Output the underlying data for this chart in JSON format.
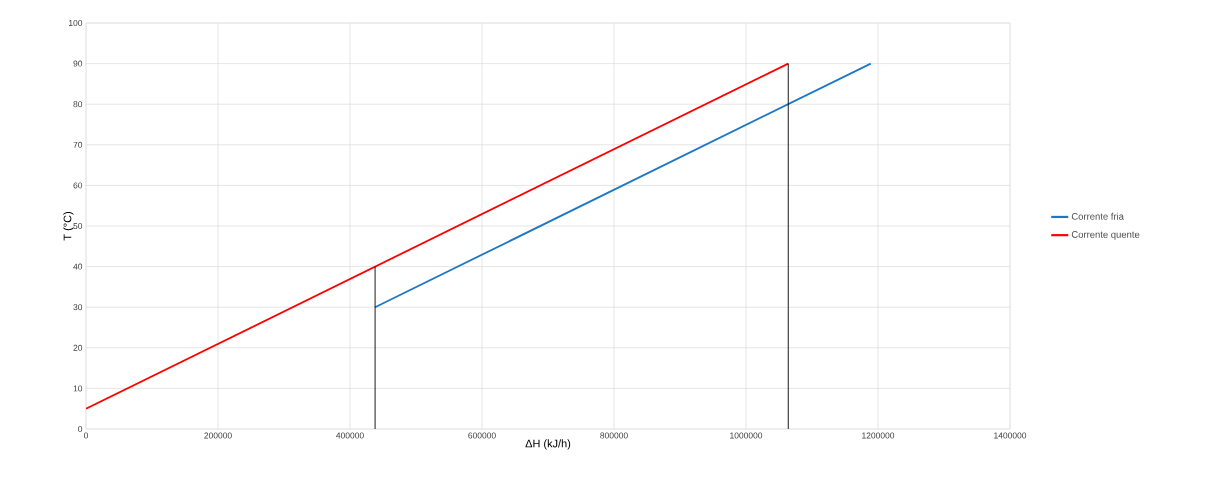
{
  "chart_data": {
    "type": "line",
    "xlabel": "ΔH (kJ/h)",
    "ylabel": "T (°C)",
    "xlim": [
      0,
      1400000
    ],
    "ylim": [
      0,
      100
    ],
    "xticks": [
      0,
      200000,
      400000,
      600000,
      800000,
      1000000,
      1200000,
      1400000
    ],
    "yticks": [
      0,
      10,
      20,
      30,
      40,
      50,
      60,
      70,
      80,
      90,
      100
    ],
    "grid": true,
    "legend": "right",
    "marker": "none",
    "line_style": "solid",
    "series": [
      {
        "name": "Corrente fria",
        "color": "#1f77c4",
        "x": [
          438000,
          1189000
        ],
        "values": [
          30,
          90
        ]
      },
      {
        "name": "Corrente quente",
        "color": "#ff0000",
        "x": [
          0,
          1064000
        ],
        "values": [
          5,
          90
        ]
      },
      {
        "color": "#000000",
        "x": [
          438000,
          438000
        ],
        "values": [
          0,
          40
        ]
      },
      {
        "color": "#000000",
        "x": [
          1064000,
          1064000
        ],
        "values": [
          0,
          90
        ]
      }
    ]
  }
}
